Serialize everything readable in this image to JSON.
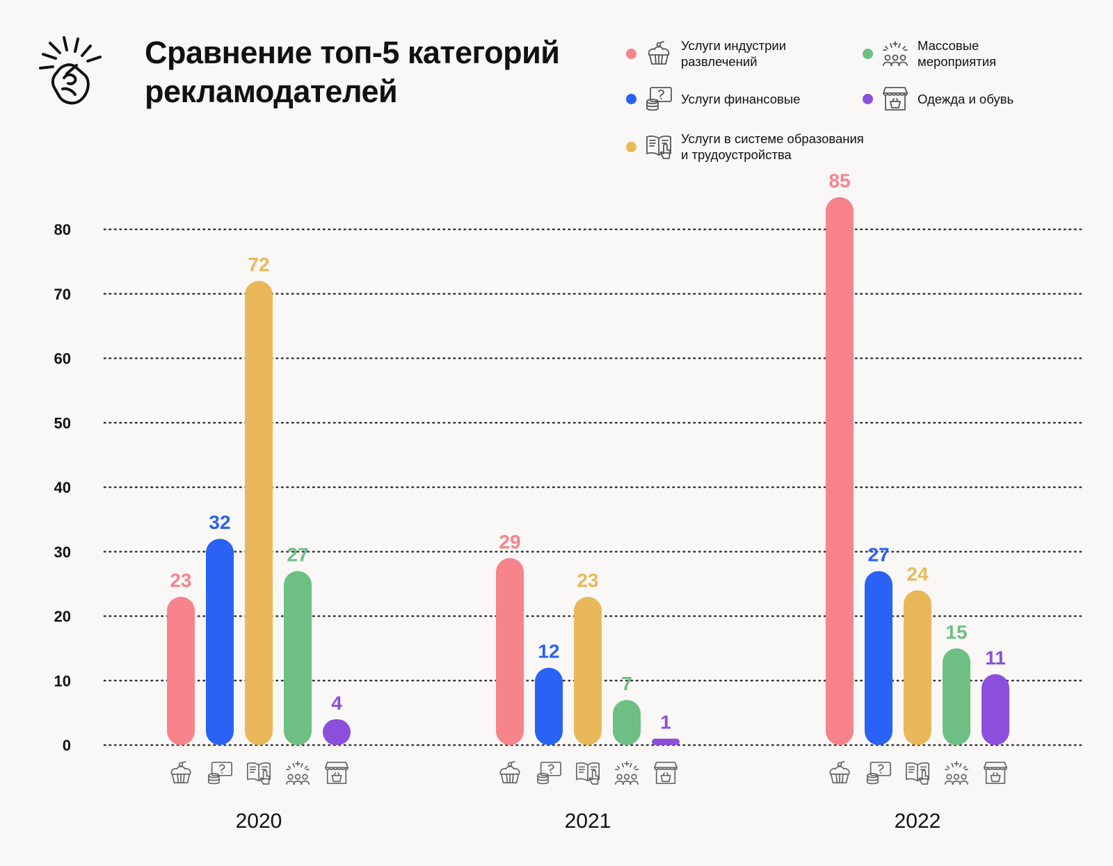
{
  "header": {
    "title": "Сравнение топ-5 категорий рекламодателей",
    "logo_icon": "snapping-fingers-icon"
  },
  "legend": [
    {
      "label": "Услуги индустрии\nразвлечений",
      "color": "#f7838b",
      "icon": "cupcake-icon"
    },
    {
      "label": "Массовые\nмероприятия",
      "color": "#6dbf84",
      "icon": "crowd-fireworks-icon"
    },
    {
      "label": "Услуги финансовые",
      "color": "#2962f4",
      "icon": "money-coins-icon"
    },
    {
      "label": "Одежда и обувь",
      "color": "#8b4fdb",
      "icon": "shop-basket-icon"
    },
    {
      "label": "Услуги в системе образования\nи трудоустройства",
      "color": "#e9b85a",
      "icon": "book-hand-icon"
    }
  ],
  "chart_data": {
    "type": "bar",
    "title": "Сравнение топ-5 категорий рекламодателей",
    "categories": [
      "2020",
      "2021",
      "2022"
    ],
    "series": [
      {
        "name": "Услуги индустрии развлечений",
        "color": "#f7838b",
        "icon": "cupcake-icon",
        "values": [
          23,
          29,
          85
        ]
      },
      {
        "name": "Услуги финансовые",
        "color": "#2962f4",
        "icon": "money-coins-icon",
        "values": [
          32,
          12,
          27
        ]
      },
      {
        "name": "Услуги в системе образования и трудоустройства",
        "color": "#e9b85a",
        "icon": "book-hand-icon",
        "values": [
          72,
          23,
          24
        ]
      },
      {
        "name": "Массовые мероприятия",
        "color": "#6dbf84",
        "icon": "crowd-fireworks-icon",
        "values": [
          27,
          7,
          15
        ]
      },
      {
        "name": "Одежда и обувь",
        "color": "#8b4fdb",
        "icon": "shop-basket-icon",
        "values": [
          4,
          1,
          11
        ]
      }
    ],
    "yticks": [
      "0",
      "10",
      "20",
      "30",
      "40",
      "50",
      "60",
      "70",
      "80"
    ],
    "ylim": [
      0,
      80
    ],
    "grid": true,
    "grid_style": "dotted",
    "legend_position": "top-right",
    "xlabel": "",
    "ylabel": ""
  }
}
